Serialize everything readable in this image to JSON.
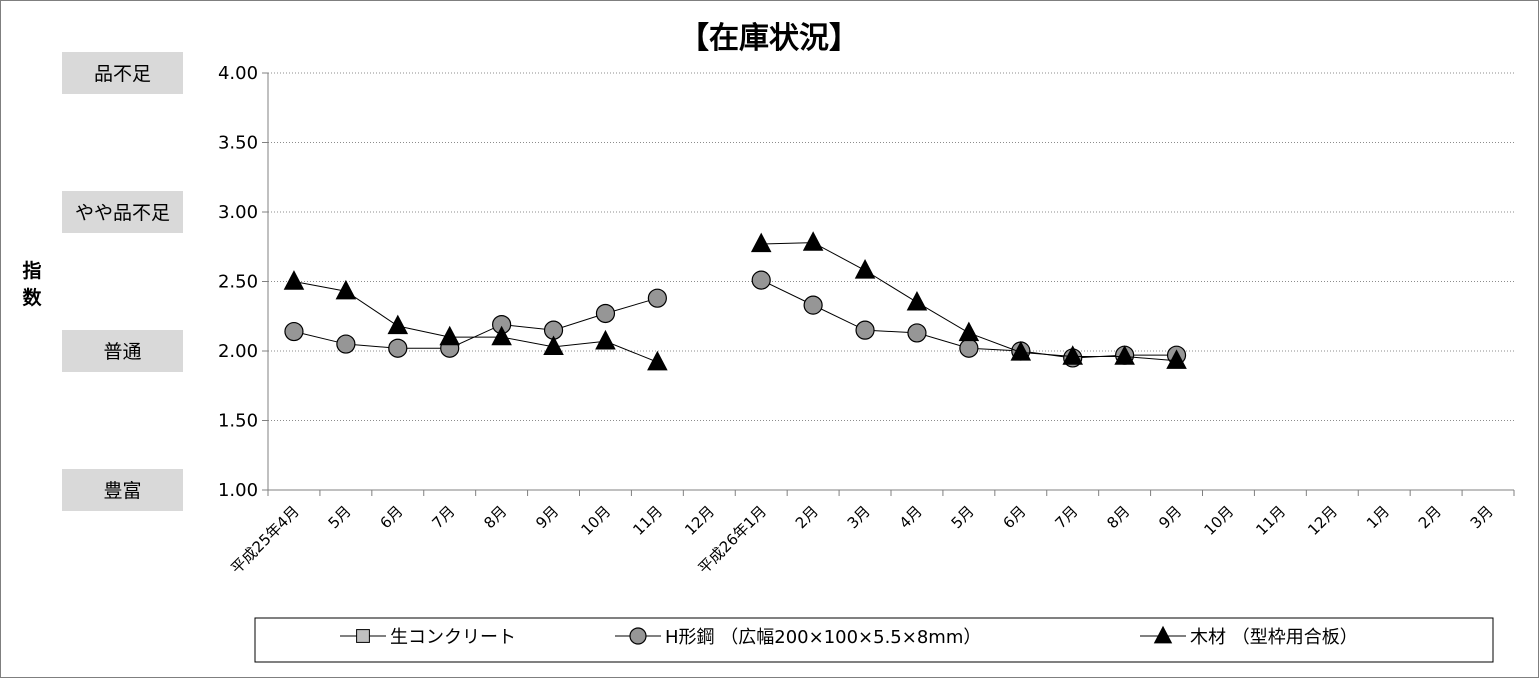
{
  "chart_data": {
    "type": "line",
    "title": "【在庫状況】",
    "ylabel": "指数",
    "ylim": [
      1.0,
      4.0
    ],
    "yticks": [
      "1.00",
      "1.50",
      "2.00",
      "2.50",
      "3.00",
      "3.50",
      "4.00"
    ],
    "y_category_labels": [
      {
        "label": "品不足",
        "value": 4.0
      },
      {
        "label": "やや品不足",
        "value": 3.0
      },
      {
        "label": "普通",
        "value": 2.0
      },
      {
        "label": "豊富",
        "value": 1.0
      }
    ],
    "grid": true,
    "legend_position": "bottom",
    "categories": [
      "平成25年4月",
      "5月",
      "6月",
      "7月",
      "8月",
      "9月",
      "10月",
      "11月",
      "12月",
      "平成26年1月",
      "2月",
      "3月",
      "4月",
      "5月",
      "6月",
      "7月",
      "8月",
      "9月",
      "10月",
      "11月",
      "12月",
      "1月",
      "2月",
      "3月"
    ],
    "series": [
      {
        "name": "生コンクリート",
        "marker": "square",
        "color": "#c0c0c0",
        "values": [
          null,
          null,
          null,
          null,
          null,
          null,
          null,
          null,
          null,
          null,
          null,
          null,
          null,
          null,
          null,
          null,
          null,
          null,
          null,
          null,
          null,
          null,
          null,
          null
        ]
      },
      {
        "name": "H形鋼 （広幅200×100×5.5×8mm）",
        "marker": "circle",
        "color": "#969696",
        "values": [
          2.14,
          2.05,
          2.02,
          2.02,
          2.19,
          2.15,
          2.27,
          2.38,
          null,
          2.51,
          2.33,
          2.15,
          2.13,
          2.02,
          2.0,
          1.95,
          1.97,
          1.97,
          null,
          null,
          null,
          null,
          null,
          null
        ]
      },
      {
        "name": "木材 （型枠用合板）",
        "marker": "triangle",
        "color": "#000000",
        "values": [
          2.5,
          2.43,
          2.18,
          2.1,
          2.1,
          2.03,
          2.07,
          1.92,
          null,
          2.77,
          2.78,
          2.58,
          2.35,
          2.13,
          1.99,
          1.96,
          1.96,
          1.93,
          null,
          null,
          null,
          null,
          null,
          null
        ]
      }
    ]
  }
}
